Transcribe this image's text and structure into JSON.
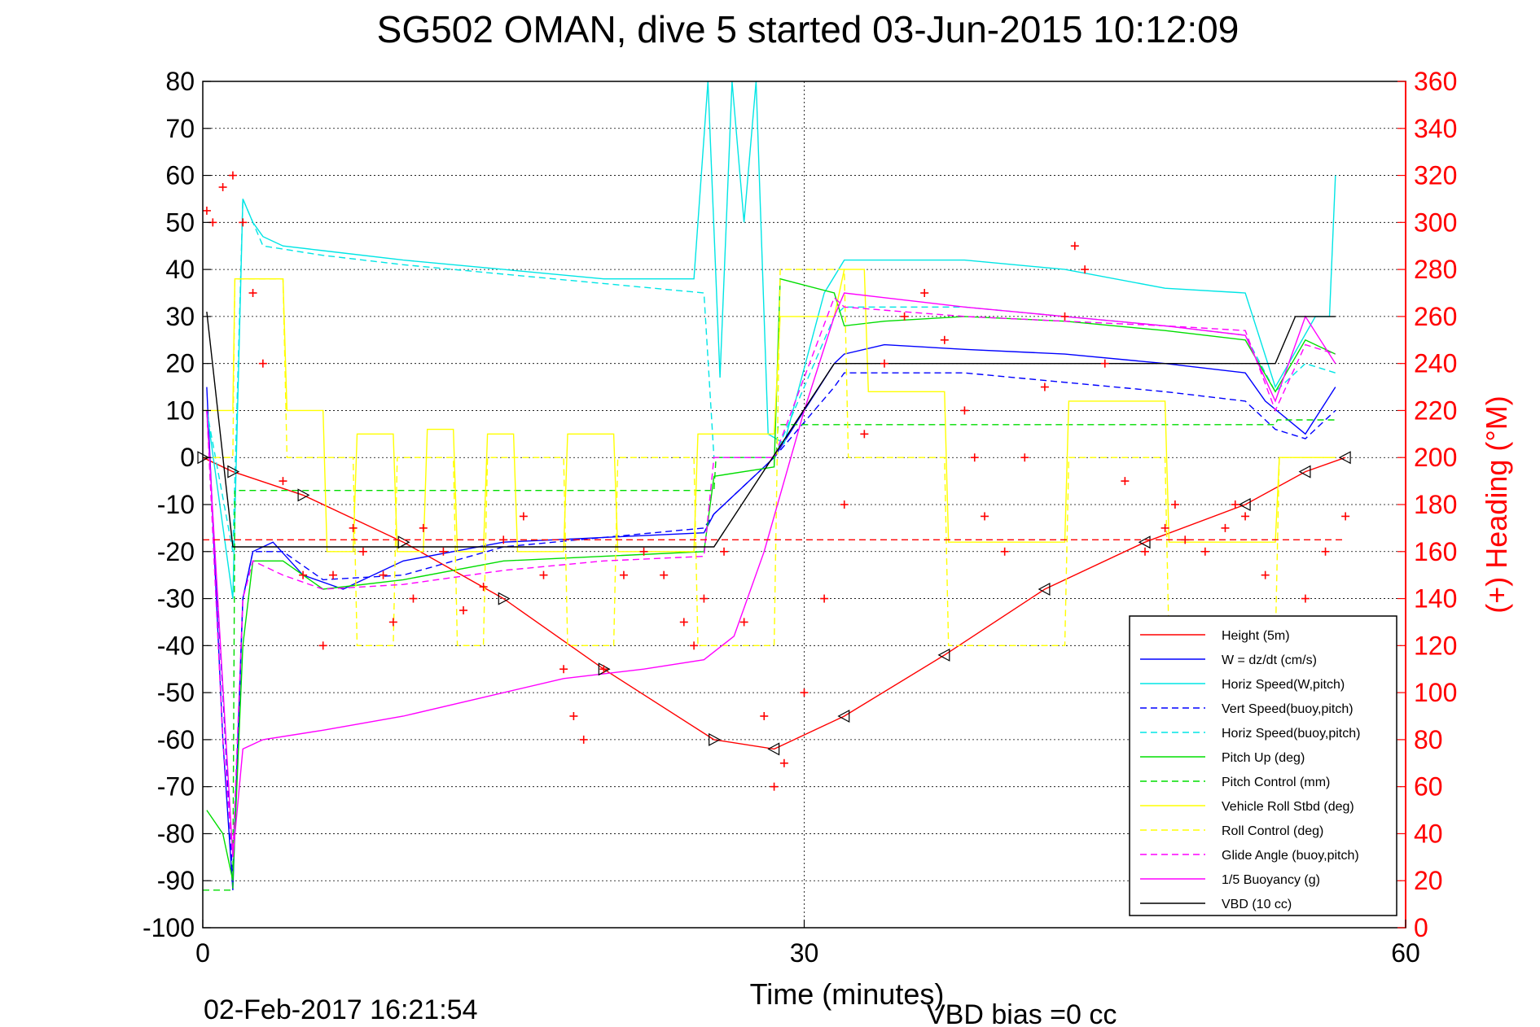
{
  "chart_data": {
    "type": "line",
    "title": "SG502 OMAN, dive 5 started 03-Jun-2015 10:12:09",
    "xlabel": "Time (minutes)",
    "ylabel": "",
    "y2label": "(+) Heading (°M)",
    "xlim": [
      0,
      60
    ],
    "ylim": [
      -100,
      80
    ],
    "y2lim": [
      0,
      360
    ],
    "xticks": [
      "0",
      "30",
      "60"
    ],
    "yticks": [
      "80",
      "70",
      "60",
      "50",
      "40",
      "30",
      "20",
      "10",
      "0",
      "-10",
      "-20",
      "-30",
      "-40",
      "-50",
      "-60",
      "-70",
      "-80",
      "-90",
      "-100"
    ],
    "y2ticks": [
      "360",
      "340",
      "320",
      "300",
      "280",
      "260",
      "240",
      "220",
      "200",
      "180",
      "160",
      "140",
      "120",
      "100",
      "80",
      "60",
      "40",
      "20",
      "0"
    ],
    "grid": true,
    "legend_position": "bottom-right",
    "footer_date": "02-Feb-2017 16:21:54",
    "footer_note": "VBD bias =0 cc",
    "colors": {
      "heading": "#ff0000",
      "axis_right": "#ff0000"
    },
    "series": [
      {
        "name": "Height (5m)",
        "color": "#ff0000",
        "dash": "solid",
        "x": [
          0,
          1.5,
          5,
          10,
          15,
          20,
          25.5,
          28.5,
          32,
          37,
          42,
          47,
          52,
          55,
          57
        ],
        "y": [
          0,
          -3,
          -8,
          -18,
          -30,
          -45,
          -60,
          -62,
          -55,
          -42,
          -28,
          -18,
          -10,
          -3,
          0
        ]
      },
      {
        "name": "W = dz/dt (cm/s)",
        "color": "#0000ff",
        "dash": "solid",
        "x": [
          0.2,
          1.0,
          1.5,
          2.0,
          2.5,
          3.5,
          5,
          7,
          10,
          15,
          20,
          25,
          25.5,
          28.5,
          31.5,
          32,
          34,
          38,
          43,
          48,
          52,
          53,
          55,
          56.5
        ],
        "y": [
          15,
          -60,
          -92,
          -30,
          -20,
          -18,
          -25,
          -28,
          -22,
          -18,
          -17,
          -16,
          -12,
          0,
          20,
          22,
          24,
          23,
          22,
          20,
          18,
          12,
          5,
          15
        ]
      },
      {
        "name": "Horiz Speed(W,pitch)",
        "color": "#00e5e5",
        "dash": "solid",
        "x": [
          0.2,
          1.5,
          2.0,
          2.5,
          3,
          4,
          6,
          10,
          15,
          20,
          24.5,
          25.2,
          25.8,
          26.4,
          27.0,
          27.6,
          28.2,
          29,
          31,
          32,
          38,
          43,
          48,
          52,
          53.5,
          55.5,
          56.2,
          56.5
        ],
        "y": [
          10,
          -30,
          55,
          50,
          47,
          45,
          44,
          42,
          40,
          38,
          38,
          80,
          17,
          80,
          50,
          80,
          5,
          3,
          35,
          42,
          42,
          40,
          36,
          35,
          15,
          30,
          30,
          60
        ]
      },
      {
        "name": "Vert Speed(buoy,pitch)",
        "color": "#0000ff",
        "dash": "dash",
        "x": [
          0.2,
          1.0,
          1.5,
          2.0,
          2.5,
          4,
          6,
          10,
          15,
          20,
          25,
          25.5,
          28.5,
          31.5,
          32,
          38,
          43,
          48,
          52,
          53.5,
          55,
          56.5
        ],
        "y": [
          10,
          -50,
          -90,
          -30,
          -20,
          -20,
          -26,
          -25,
          -19,
          -17,
          -15,
          -12,
          0,
          15,
          18,
          18,
          16,
          14,
          12,
          6,
          4,
          10
        ]
      },
      {
        "name": "Horiz Speed(buoy,pitch)",
        "color": "#00e5e5",
        "dash": "dash",
        "x": [
          0.2,
          1.5,
          2.0,
          3,
          6,
          10,
          15,
          20,
          25,
          25.5,
          28.5,
          31.5,
          32,
          38,
          43,
          48,
          52,
          53.5,
          55,
          56.5
        ],
        "y": [
          10,
          -20,
          55,
          45,
          43,
          41,
          39,
          37,
          35,
          0,
          0,
          30,
          32,
          32,
          30,
          28,
          26,
          14,
          20,
          18
        ]
      },
      {
        "name": "Pitch Up (deg)",
        "color": "#00dd00",
        "dash": "solid",
        "x": [
          0.2,
          1.0,
          1.5,
          2.0,
          2.5,
          4,
          6,
          10,
          15,
          20,
          25,
          25.5,
          28.5,
          28.8,
          31.5,
          32,
          34,
          38,
          43,
          48,
          52,
          53.5,
          55,
          56.5
        ],
        "y": [
          -75,
          -80,
          -90,
          -40,
          -22,
          -22,
          -28,
          -26,
          -22,
          -21,
          -20,
          -4,
          -2,
          38,
          35,
          28,
          29,
          30,
          29,
          27,
          25,
          14,
          25,
          22
        ]
      },
      {
        "name": "Pitch Control (mm)",
        "color": "#00dd00",
        "dash": "dash",
        "x": [
          0,
          1.5,
          1.6,
          25.5,
          25.6,
          28.6,
          28.7,
          53.5,
          53.6,
          56.5
        ],
        "y": [
          -92,
          -92,
          -7,
          -7,
          0,
          0,
          7,
          7,
          8,
          8
        ]
      },
      {
        "name": "Vehicle Roll Stbd (deg)",
        "color": "#ffff00",
        "dash": "solid",
        "x": [
          0,
          1.5,
          1.6,
          4,
          4.2,
          6,
          6.2,
          7.5,
          7.7,
          9.5,
          9.7,
          11,
          11.2,
          12.5,
          12.7,
          14,
          14.2,
          15.5,
          15.7,
          18,
          18.2,
          20.5,
          20.7,
          24.5,
          24.7,
          28.5,
          28.8,
          31.5,
          32,
          33,
          33.2,
          37,
          37.2,
          43,
          43.2,
          48,
          48.2,
          53.5,
          53.7,
          56.5
        ],
        "y": [
          10,
          10,
          38,
          38,
          10,
          10,
          -20,
          -20,
          5,
          5,
          -20,
          -20,
          6,
          6,
          -20,
          -20,
          5,
          5,
          -20,
          -20,
          5,
          5,
          -20,
          -20,
          5,
          5,
          30,
          30,
          40,
          40,
          14,
          14,
          -18,
          -18,
          12,
          12,
          -18,
          -18,
          0,
          0
        ]
      },
      {
        "name": "Roll Control (deg)",
        "color": "#ffff00",
        "dash": "dash",
        "x": [
          0,
          1.5,
          1.6,
          4,
          4.2,
          7.5,
          7.7,
          9.5,
          9.7,
          12.5,
          12.7,
          14,
          14.2,
          18,
          18.2,
          20.5,
          20.7,
          24.5,
          24.7,
          28.5,
          28.8,
          32,
          32.2,
          37,
          37.2,
          43,
          43.2,
          48,
          48.2,
          53.5,
          53.7,
          56.5
        ],
        "y": [
          0,
          0,
          38,
          38,
          0,
          0,
          -40,
          -40,
          0,
          0,
          -40,
          -40,
          0,
          0,
          -40,
          -40,
          0,
          0,
          -40,
          -40,
          40,
          40,
          0,
          0,
          -40,
          -40,
          0,
          0,
          -40,
          -40,
          0,
          0
        ]
      },
      {
        "name": "Glide Angle (buoy,pitch)",
        "color": "#ff00ff",
        "dash": "dash",
        "x": [
          0.2,
          1.0,
          1.5,
          2.0,
          2.5,
          4,
          6,
          10,
          15,
          20,
          25,
          25.5,
          28.5,
          31.5,
          32,
          38,
          43,
          48,
          52,
          53.5,
          55,
          56.5
        ],
        "y": [
          10,
          -60,
          -85,
          -30,
          -22,
          -25,
          -28,
          -27,
          -24,
          -22,
          -21,
          0,
          0,
          34,
          32,
          30,
          29,
          28,
          27,
          10,
          24,
          22
        ]
      },
      {
        "name": "1/5 Buoyancy (g)",
        "color": "#ff00ff",
        "dash": "solid",
        "x": [
          0.2,
          1.5,
          2.0,
          3,
          6,
          10,
          14,
          18,
          22,
          25,
          26.5,
          28,
          30,
          31.5,
          32,
          34,
          38,
          43,
          48,
          52,
          53.5,
          55,
          56.5
        ],
        "y": [
          10,
          -85,
          -62,
          -60,
          -58,
          -55,
          -51,
          -47,
          -45,
          -43,
          -38,
          -20,
          10,
          30,
          35,
          34,
          32,
          30,
          28,
          26,
          12,
          30,
          20
        ]
      },
      {
        "name": "VBD (10 cc)",
        "color": "#000000",
        "dash": "solid",
        "x": [
          0.2,
          1.5,
          1.6,
          25.5,
          31.5,
          32,
          53.5,
          54.5,
          56.5
        ],
        "y": [
          31,
          -19,
          -19,
          -19,
          20,
          20,
          20,
          30,
          30
        ]
      }
    ],
    "heading": {
      "name": "(+) Heading",
      "marker": "+",
      "mean_heading": 165,
      "x": [
        0.2,
        0.5,
        1.0,
        1.5,
        2.0,
        2.5,
        3.0,
        4.0,
        5.0,
        6.0,
        6.5,
        7.5,
        8.0,
        9.0,
        9.5,
        10.5,
        11.0,
        12.0,
        13.0,
        14.0,
        15.0,
        16.0,
        17.0,
        18.0,
        18.5,
        19.0,
        20.0,
        21.0,
        22.0,
        23.0,
        24.0,
        24.5,
        25.0,
        26.0,
        27.0,
        28.0,
        28.5,
        29.0,
        30.0,
        31.0,
        32.0,
        33.0,
        34.0,
        35.0,
        36.0,
        37.0,
        38.0,
        38.5,
        39.0,
        40.0,
        41.0,
        42.0,
        43.0,
        43.5,
        44.0,
        45.0,
        46.0,
        47.0,
        48.0,
        48.5,
        49.0,
        50.0,
        51.0,
        51.5,
        52.0,
        53.0,
        53.5,
        54.0,
        55.0,
        56.0,
        57.0
      ],
      "y": [
        305,
        300,
        315,
        320,
        300,
        270,
        240,
        190,
        150,
        120,
        150,
        170,
        160,
        150,
        130,
        140,
        170,
        160,
        135,
        145,
        165,
        175,
        150,
        110,
        90,
        80,
        110,
        150,
        160,
        150,
        130,
        120,
        140,
        160,
        130,
        90,
        60,
        70,
        100,
        140,
        180,
        210,
        240,
        260,
        270,
        250,
        220,
        200,
        175,
        160,
        200,
        230,
        260,
        290,
        280,
        240,
        190,
        160,
        170,
        180,
        165,
        160,
        170,
        180,
        175,
        150,
        130,
        120,
        140,
        160,
        175
      ]
    }
  }
}
